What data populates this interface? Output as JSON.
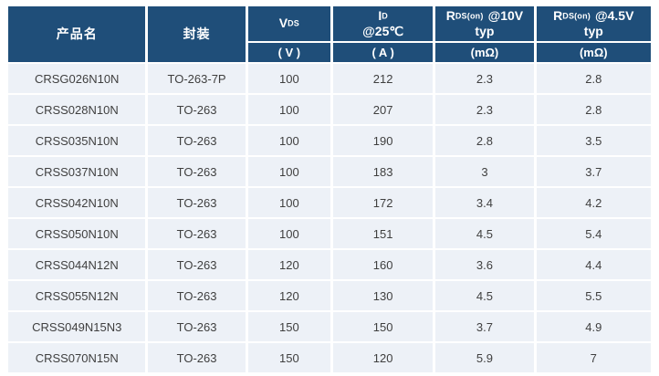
{
  "colors": {
    "header_bg": "#1F4E79",
    "row_bg": "#EDF1F7",
    "grid_lines": "#FFFFFF",
    "header_text": "#FFFFFF",
    "body_text": "#3F3F3F"
  },
  "table": {
    "header": {
      "product": "产品名",
      "package": "封装",
      "vds": {
        "base": "V",
        "sub": "DS",
        "unit": "( V )"
      },
      "id": {
        "base": "I",
        "sub": "D",
        "cond": "@25℃",
        "unit": "( A )"
      },
      "rds10": {
        "base": "R",
        "sub": "DS(on)",
        "cond": "@10V",
        "line2": "typ",
        "unit": "(mΩ)"
      },
      "rds45": {
        "base": "R",
        "sub": "DS(on)",
        "cond": "@4.5V",
        "line2": "typ",
        "unit": "(mΩ)"
      }
    },
    "rows": [
      {
        "product": "CRSG026N10N",
        "package": "TO-263-7P",
        "vds": "100",
        "id": "212",
        "rds10": "2.3",
        "rds45": "2.8"
      },
      {
        "product": "CRSS028N10N",
        "package": "TO-263",
        "vds": "100",
        "id": "207",
        "rds10": "2.3",
        "rds45": "2.8"
      },
      {
        "product": "CRSS035N10N",
        "package": "TO-263",
        "vds": "100",
        "id": "190",
        "rds10": "2.8",
        "rds45": "3.5"
      },
      {
        "product": "CRSS037N10N",
        "package": "TO-263",
        "vds": "100",
        "id": "183",
        "rds10": "3",
        "rds45": "3.7"
      },
      {
        "product": "CRSS042N10N",
        "package": "TO-263",
        "vds": "100",
        "id": "172",
        "rds10": "3.4",
        "rds45": "4.2"
      },
      {
        "product": "CRSS050N10N",
        "package": "TO-263",
        "vds": "100",
        "id": "151",
        "rds10": "4.5",
        "rds45": "5.4"
      },
      {
        "product": "CRSS044N12N",
        "package": "TO-263",
        "vds": "120",
        "id": "160",
        "rds10": "3.6",
        "rds45": "4.4"
      },
      {
        "product": "CRSS055N12N",
        "package": "TO-263",
        "vds": "120",
        "id": "130",
        "rds10": "4.5",
        "rds45": "5.5"
      },
      {
        "product": "CRSS049N15N3",
        "package": "TO-263",
        "vds": "150",
        "id": "150",
        "rds10": "3.7",
        "rds45": "4.9"
      },
      {
        "product": "CRSS070N15N",
        "package": "TO-263",
        "vds": "150",
        "id": "120",
        "rds10": "5.9",
        "rds45": "7"
      }
    ]
  }
}
